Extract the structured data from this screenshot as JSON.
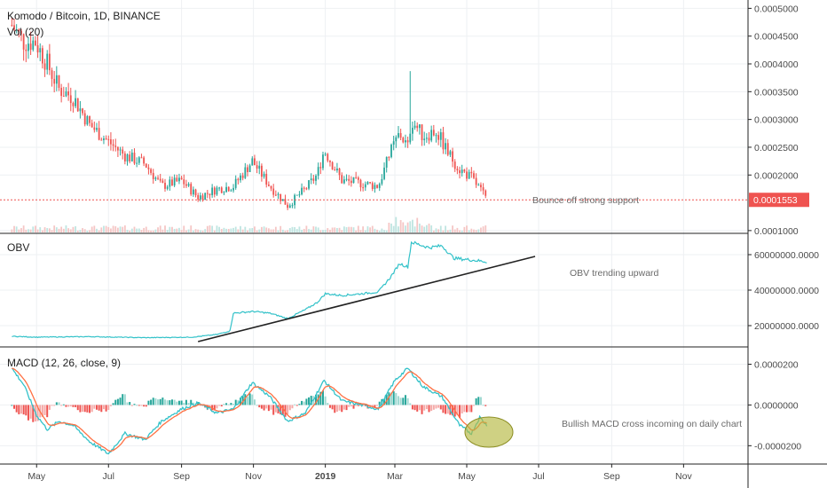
{
  "header": {
    "title": "Komodo / Bitcoin, 1D, BINANCE",
    "volume_label": "Vol (20)"
  },
  "colors": {
    "up": "#26a69a",
    "down": "#ef5350",
    "line": "#33c2c9",
    "signal": "#ff7043",
    "trend": "#222222",
    "price_tag": "#ef5350",
    "ellipse_fill": "#b5b840",
    "grid": "#eef0f3",
    "axis_border": "#222222"
  },
  "chart_data": [
    {
      "type": "candlestick",
      "title": "Komodo / Bitcoin, 1D, BINANCE",
      "ylim": [
        9.5e-05,
        0.000515
      ],
      "y_ticks": [
        "0.0005000",
        "0.0004500",
        "0.0004000",
        "0.0003500",
        "0.0003000",
        "0.0002500",
        "0.0002000",
        "0.0001000"
      ],
      "y_tick_values": [
        0.0005,
        0.00045,
        0.0004,
        0.00035,
        0.0003,
        0.00025,
        0.0002,
        0.0001
      ],
      "last_price": 0.0001553,
      "last_price_label": "0.0001553",
      "annotation": "Bounce off strong support",
      "anchors": [
        {
          "date": "2018-04-10",
          "close": 0.00047
        },
        {
          "date": "2018-04-20",
          "close": 0.00044
        },
        {
          "date": "2018-04-30",
          "close": 0.00044
        },
        {
          "date": "2018-05-10",
          "close": 0.0004
        },
        {
          "date": "2018-05-20",
          "close": 0.000355
        },
        {
          "date": "2018-06-01",
          "close": 0.00034
        },
        {
          "date": "2018-06-15",
          "close": 0.00029
        },
        {
          "date": "2018-07-01",
          "close": 0.00026
        },
        {
          "date": "2018-07-15",
          "close": 0.000235
        },
        {
          "date": "2018-08-01",
          "close": 0.00022
        },
        {
          "date": "2018-08-15",
          "close": 0.00018
        },
        {
          "date": "2018-09-01",
          "close": 0.00019
        },
        {
          "date": "2018-09-15",
          "close": 0.00016
        },
        {
          "date": "2018-10-01",
          "close": 0.000175
        },
        {
          "date": "2018-10-15",
          "close": 0.00018
        },
        {
          "date": "2018-10-31",
          "close": 0.000225
        },
        {
          "date": "2018-11-15",
          "close": 0.00018
        },
        {
          "date": "2018-11-30",
          "close": 0.000145
        },
        {
          "date": "2018-12-15",
          "close": 0.000175
        },
        {
          "date": "2018-12-25",
          "close": 0.0002
        },
        {
          "date": "2018-12-31",
          "close": 0.000245
        },
        {
          "date": "2019-01-15",
          "close": 0.00019
        },
        {
          "date": "2019-02-01",
          "close": 0.000185
        },
        {
          "date": "2019-02-15",
          "close": 0.00018
        },
        {
          "date": "2019-02-25",
          "close": 0.00024
        },
        {
          "date": "2019-03-05",
          "close": 0.000275
        },
        {
          "date": "2019-03-12",
          "close": 0.00025
        },
        {
          "date": "2019-03-15",
          "close": 0.0003
        },
        {
          "date": "2019-03-25",
          "close": 0.00027
        },
        {
          "date": "2019-04-05",
          "close": 0.00028
        },
        {
          "date": "2019-04-15",
          "close": 0.00024
        },
        {
          "date": "2019-04-25",
          "close": 0.00021
        },
        {
          "date": "2019-05-05",
          "close": 0.000195
        },
        {
          "date": "2019-05-12",
          "close": 0.000175
        },
        {
          "date": "2019-05-18",
          "close": 0.000155
        }
      ],
      "spike": {
        "date": "2019-03-14",
        "high": 0.000387
      }
    },
    {
      "type": "line",
      "title": "OBV",
      "ylim": [
        8000000,
        72000000
      ],
      "y_ticks": [
        "60000000.0000",
        "40000000.0000",
        "20000000.0000"
      ],
      "y_tick_values": [
        60000000,
        40000000,
        20000000
      ],
      "annotation": "OBV trending upward",
      "points": [
        {
          "date": "2018-04-10",
          "value": 14000000
        },
        {
          "date": "2018-05-01",
          "value": 13500000
        },
        {
          "date": "2018-06-15",
          "value": 13800000
        },
        {
          "date": "2018-08-01",
          "value": 13200000
        },
        {
          "date": "2018-09-10",
          "value": 13500000
        },
        {
          "date": "2018-10-01",
          "value": 15000000
        },
        {
          "date": "2018-10-12",
          "value": 17000000
        },
        {
          "date": "2018-10-15",
          "value": 27000000
        },
        {
          "date": "2018-11-01",
          "value": 28000000
        },
        {
          "date": "2018-11-15",
          "value": 27000000
        },
        {
          "date": "2018-11-30",
          "value": 24000000
        },
        {
          "date": "2018-12-15",
          "value": 29000000
        },
        {
          "date": "2018-12-25",
          "value": 33000000
        },
        {
          "date": "2019-01-01",
          "value": 38000000
        },
        {
          "date": "2019-01-15",
          "value": 37000000
        },
        {
          "date": "2019-02-01",
          "value": 38000000
        },
        {
          "date": "2019-02-15",
          "value": 39000000
        },
        {
          "date": "2019-02-25",
          "value": 47000000
        },
        {
          "date": "2019-03-05",
          "value": 55000000
        },
        {
          "date": "2019-03-12",
          "value": 53000000
        },
        {
          "date": "2019-03-15",
          "value": 67000000
        },
        {
          "date": "2019-03-30",
          "value": 64000000
        },
        {
          "date": "2019-04-10",
          "value": 65000000
        },
        {
          "date": "2019-04-20",
          "value": 58000000
        },
        {
          "date": "2019-05-05",
          "value": 57000000
        },
        {
          "date": "2019-05-18",
          "value": 56000000
        }
      ],
      "trendline": [
        {
          "date": "2018-09-15",
          "value": 11000000
        },
        {
          "date": "2019-06-28",
          "value": 59000000
        }
      ]
    },
    {
      "type": "macd",
      "title": "MACD (12, 26, close, 9)",
      "ylim": [
        -2.9e-05,
        2.85e-05
      ],
      "y_ticks": [
        "0.0000200",
        "0.0000000",
        "-0.0000200"
      ],
      "y_tick_values": [
        2e-05,
        0,
        -2e-05
      ],
      "annotation": "Bullish MACD cross incoming on daily chart",
      "points": [
        {
          "date": "2018-04-10",
          "macd": 1.8e-05
        },
        {
          "date": "2018-04-20",
          "macd": 1e-05
        },
        {
          "date": "2018-05-01",
          "macd": -5e-06
        },
        {
          "date": "2018-05-10",
          "macd": -1.2e-05
        },
        {
          "date": "2018-05-20",
          "macd": -8e-06
        },
        {
          "date": "2018-06-01",
          "macd": -1e-05
        },
        {
          "date": "2018-06-15",
          "macd": -1.8e-05
        },
        {
          "date": "2018-07-01",
          "macd": -2.4e-05
        },
        {
          "date": "2018-07-15",
          "macd": -1.4e-05
        },
        {
          "date": "2018-08-01",
          "macd": -1.7e-05
        },
        {
          "date": "2018-08-15",
          "macd": -8e-06
        },
        {
          "date": "2018-09-01",
          "macd": -2e-06
        },
        {
          "date": "2018-09-15",
          "macd": 1e-06
        },
        {
          "date": "2018-10-01",
          "macd": -4e-06
        },
        {
          "date": "2018-10-15",
          "macd": -2e-06
        },
        {
          "date": "2018-10-31",
          "macd": 1.1e-05
        },
        {
          "date": "2018-11-15",
          "macd": 4e-06
        },
        {
          "date": "2018-11-30",
          "macd": -8e-06
        },
        {
          "date": "2018-12-15",
          "macd": -4e-06
        },
        {
          "date": "2018-12-31",
          "macd": 1.2e-05
        },
        {
          "date": "2019-01-15",
          "macd": 2e-06
        },
        {
          "date": "2019-02-01",
          "macd": 0.0
        },
        {
          "date": "2019-02-15",
          "macd": -2e-06
        },
        {
          "date": "2019-03-01",
          "macd": 1.2e-05
        },
        {
          "date": "2019-03-12",
          "macd": 1.8e-05
        },
        {
          "date": "2019-03-25",
          "macd": 9e-06
        },
        {
          "date": "2019-04-10",
          "macd": 4e-06
        },
        {
          "date": "2019-04-25",
          "macd": -1e-05
        },
        {
          "date": "2019-05-05",
          "macd": -1.4e-05
        },
        {
          "date": "2019-05-12",
          "macd": -6e-06
        },
        {
          "date": "2019-05-18",
          "macd": -1e-05
        }
      ]
    }
  ],
  "x_axis": {
    "ticks": [
      {
        "date": "2018-05-01",
        "label": "May",
        "bold": false
      },
      {
        "date": "2018-07-01",
        "label": "Jul",
        "bold": false
      },
      {
        "date": "2018-09-01",
        "label": "Sep",
        "bold": false
      },
      {
        "date": "2018-11-01",
        "label": "Nov",
        "bold": false
      },
      {
        "date": "2019-01-01",
        "label": "2019",
        "bold": true
      },
      {
        "date": "2019-03-01",
        "label": "Mar",
        "bold": false
      },
      {
        "date": "2019-05-01",
        "label": "May",
        "bold": false
      },
      {
        "date": "2019-07-01",
        "label": "Jul",
        "bold": false
      },
      {
        "date": "2019-09-01",
        "label": "Sep",
        "bold": false
      },
      {
        "date": "2019-11-01",
        "label": "Nov",
        "bold": false
      }
    ]
  }
}
